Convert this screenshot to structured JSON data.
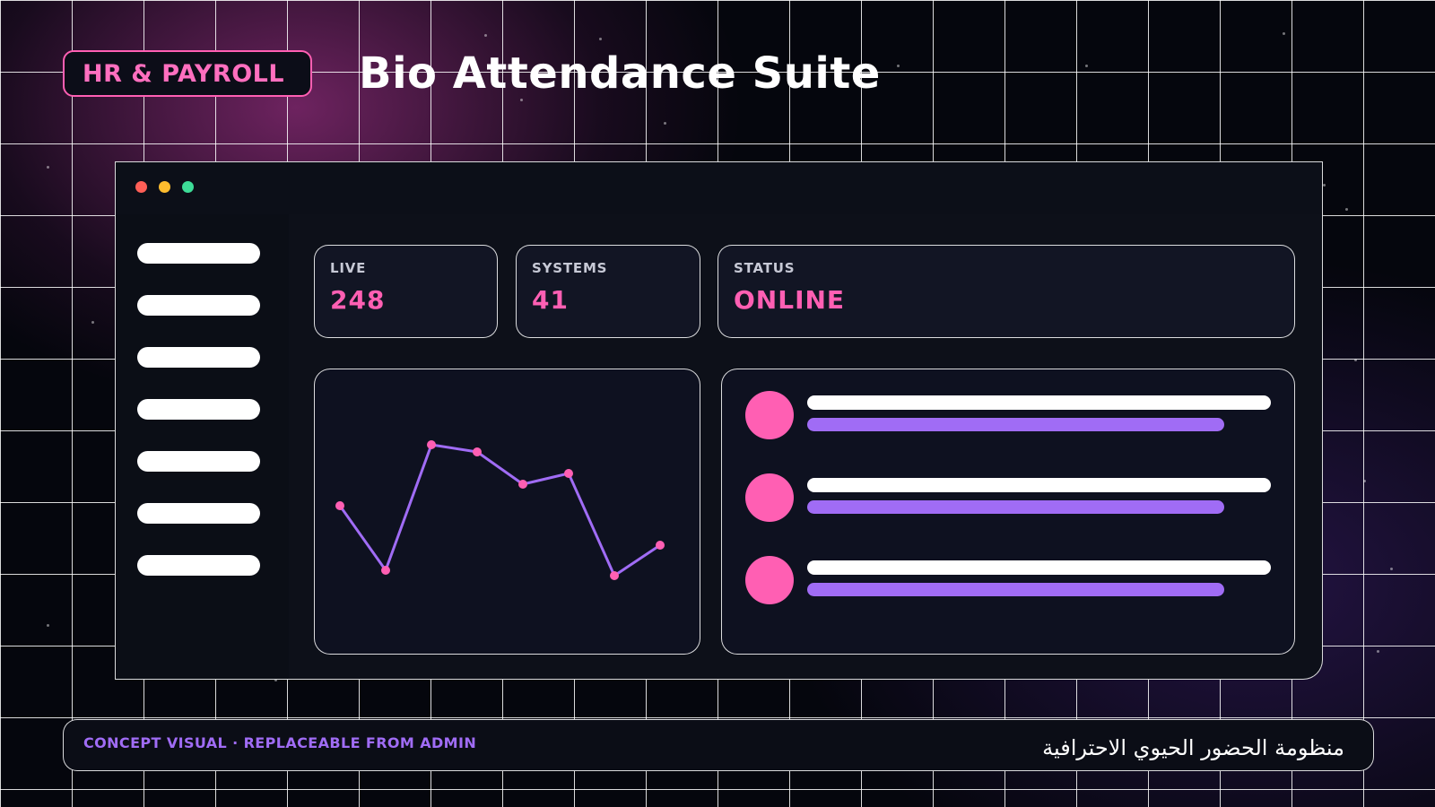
{
  "header": {
    "tag_label": "HR & PAYROLL",
    "title": "Bio Attendance Suite"
  },
  "window": {
    "controls": [
      "close-dot",
      "minimize-dot",
      "maximize-dot"
    ],
    "sidebar": {
      "item_count": 7
    }
  },
  "stats": [
    {
      "label": "LIVE",
      "value": "248"
    },
    {
      "label": "SYSTEMS",
      "value": "41"
    },
    {
      "label": "STATUS",
      "value": "ONLINE"
    }
  ],
  "chart_data": {
    "type": "line",
    "x": [
      1,
      2,
      3,
      4,
      5,
      6,
      7,
      8
    ],
    "series": [
      {
        "values": [
          54,
          18,
          88,
          84,
          66,
          72,
          15,
          32
        ]
      }
    ],
    "ylim": [
      0,
      100
    ],
    "title": "",
    "xlabel": "",
    "ylabel": "",
    "grid": false,
    "line_color": "#a06cf5",
    "point_color": "#ff5fb3"
  },
  "list": {
    "items": 3
  },
  "footer": {
    "left_text": "CONCEPT VISUAL · REPLACEABLE FROM ADMIN",
    "right_text": "منظومة الحضور الحيوي الاحترافية"
  },
  "colors": {
    "accent_pink": "#ff5fb3",
    "accent_purple": "#a06cf5",
    "panel_bg": "#0e1120"
  }
}
